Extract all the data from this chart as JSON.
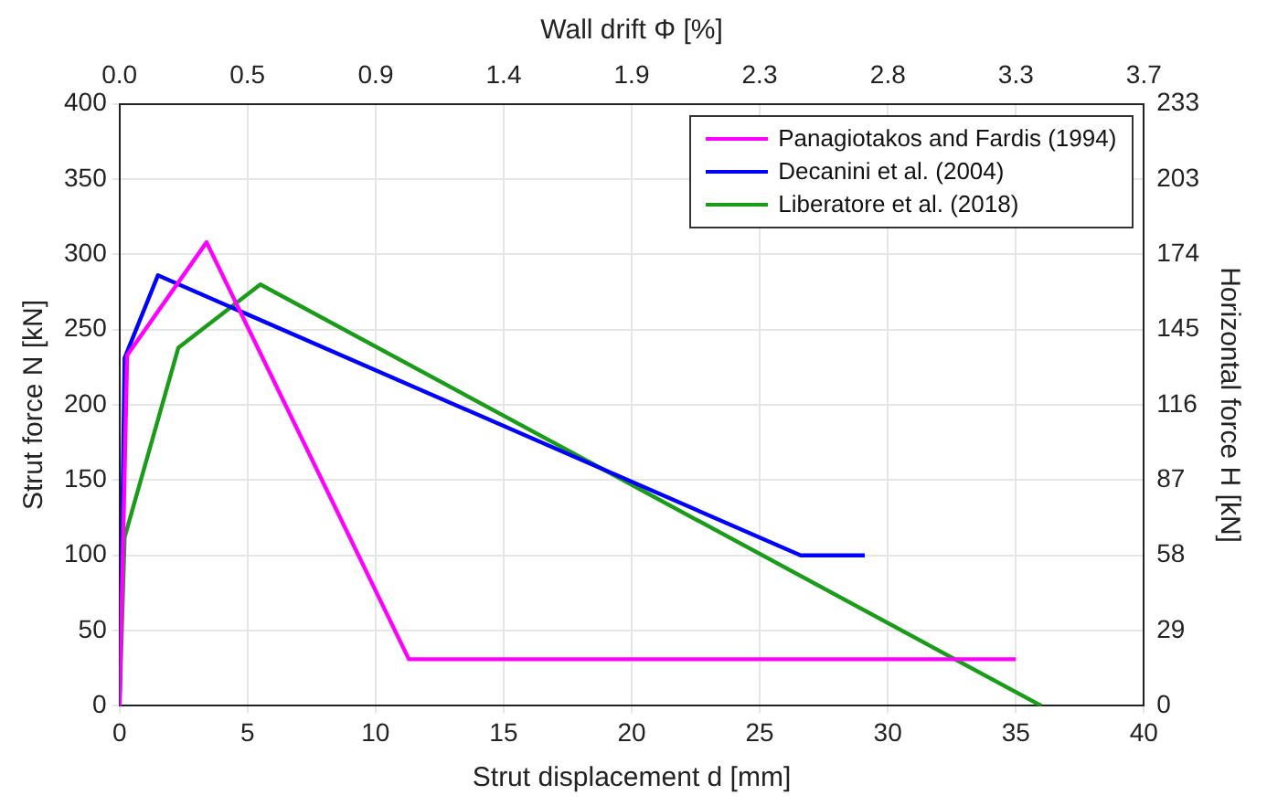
{
  "chart_data": {
    "type": "line",
    "xlabel": "Strut displacement d [mm]",
    "ylabel": "Strut force N [kN]",
    "x2label": "Wall drift Φ [%]",
    "y2label": "Horizontal force H [kN]",
    "xlim": [
      0,
      40
    ],
    "xticks": [
      0,
      5,
      10,
      15,
      20,
      25,
      30,
      35,
      40
    ],
    "ylim": [
      0,
      400
    ],
    "yticks": [
      0,
      50,
      100,
      150,
      200,
      250,
      300,
      350,
      400
    ],
    "x2lim": [
      0,
      3.738
    ],
    "x2ticks": [
      {
        "value": 0,
        "label": "0.0"
      },
      {
        "value": 0.467,
        "label": "0.5"
      },
      {
        "value": 0.935,
        "label": "0.9"
      },
      {
        "value": 1.402,
        "label": "1.4"
      },
      {
        "value": 1.869,
        "label": "1.9"
      },
      {
        "value": 2.336,
        "label": "2.3"
      },
      {
        "value": 2.804,
        "label": "2.8"
      },
      {
        "value": 3.271,
        "label": "3.3"
      },
      {
        "value": 3.738,
        "label": "3.7"
      }
    ],
    "y2lim": [
      0,
      232.52
    ],
    "y2ticks": [
      {
        "value": 0,
        "label": "0"
      },
      {
        "value": 29.07,
        "label": "29"
      },
      {
        "value": 58.13,
        "label": "58"
      },
      {
        "value": 87.2,
        "label": "87"
      },
      {
        "value": 116.26,
        "label": "116"
      },
      {
        "value": 145.33,
        "label": "145"
      },
      {
        "value": 174.39,
        "label": "174"
      },
      {
        "value": 203.46,
        "label": "203"
      },
      {
        "value": 232.52,
        "label": "233"
      }
    ],
    "grid": true,
    "legend": "top right",
    "marker": "none",
    "line_style": "solid",
    "series": [
      {
        "name": "Panagiotakos and Fardis (1994)",
        "color": "#ff00ff",
        "x": [
          0,
          0.3,
          3.4,
          11.3,
          35
        ],
        "values": [
          0,
          233,
          308,
          31,
          31
        ]
      },
      {
        "name": "Decanini et al. (2004)",
        "color": "#0000ff",
        "x": [
          0,
          0.2,
          1.5,
          26.6,
          29.1
        ],
        "values": [
          0,
          231,
          286,
          100,
          100
        ]
      },
      {
        "name": "Liberatore et al. (2018)",
        "color": "#1a9c1a",
        "x": [
          0,
          0.2,
          2.3,
          5.5,
          36
        ],
        "values": [
          0,
          112,
          238,
          280,
          0
        ]
      }
    ]
  }
}
